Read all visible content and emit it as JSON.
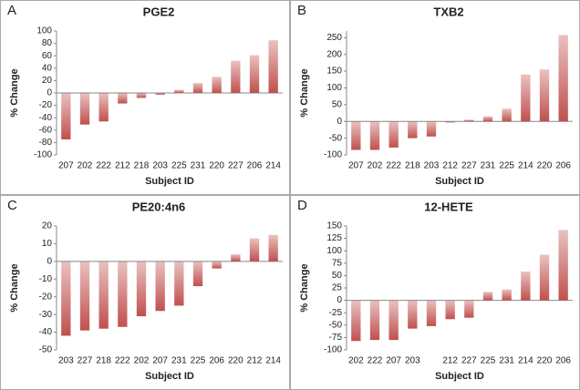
{
  "chart_data": [
    {
      "type": "bar",
      "label": "A",
      "title": "PGE2",
      "xlabel": "Subject ID",
      "ylabel": "% Change",
      "color": "#c0504d",
      "categories": [
        "207",
        "202",
        "222",
        "212",
        "218",
        "203",
        "225",
        "231",
        "220",
        "227",
        "206",
        "214"
      ],
      "values": [
        -75,
        -51,
        -46,
        -17,
        -8,
        -3,
        5,
        16,
        26,
        52,
        61,
        85
      ],
      "ylim": [
        -100,
        100
      ],
      "yticks": [
        -100,
        -80,
        -60,
        -40,
        -20,
        0,
        20,
        40,
        60,
        80,
        100
      ]
    },
    {
      "type": "bar",
      "label": "B",
      "title": "TXB2",
      "xlabel": "Subject ID",
      "ylabel": "% Change",
      "color": "#c0504d",
      "categories": [
        "207",
        "202",
        "222",
        "218",
        "203",
        "212",
        "227",
        "231",
        "225",
        "214",
        "220",
        "206"
      ],
      "values": [
        -85,
        -85,
        -78,
        -50,
        -45,
        -3,
        5,
        15,
        38,
        140,
        155,
        258
      ],
      "ylim": [
        -100,
        270
      ],
      "yticks": [
        -100,
        -50,
        0,
        50,
        100,
        150,
        200,
        250
      ]
    },
    {
      "type": "bar",
      "label": "C",
      "title": "PE20:4n6",
      "xlabel": "Subject ID",
      "ylabel": "% Change",
      "color": "#c0504d",
      "categories": [
        "203",
        "227",
        "218",
        "222",
        "202",
        "207",
        "231",
        "225",
        "206",
        "220",
        "212",
        "214"
      ],
      "values": [
        -42,
        -39,
        -38,
        -37,
        -31,
        -28,
        -25,
        -14,
        -4,
        4,
        13,
        15
      ],
      "ylim": [
        -50,
        20
      ],
      "yticks": [
        -50,
        -40,
        -30,
        -20,
        -10,
        0,
        10,
        20
      ]
    },
    {
      "type": "bar",
      "label": "D",
      "title": "12-HETE",
      "xlabel": "Subject ID",
      "ylabel": "% Change",
      "color": "#c0504d",
      "categories": [
        "202",
        "222",
        "207",
        "203",
        null,
        "212",
        "227",
        "225",
        "231",
        "214",
        "220",
        "206"
      ],
      "values": [
        -82,
        -80,
        -80,
        -57,
        -52,
        -38,
        -35,
        17,
        22,
        58,
        92,
        142
      ],
      "ylim": [
        -100,
        150
      ],
      "yticks": [
        -100,
        -75,
        -50,
        -25,
        0,
        25,
        50,
        75,
        100,
        125,
        150
      ]
    }
  ]
}
